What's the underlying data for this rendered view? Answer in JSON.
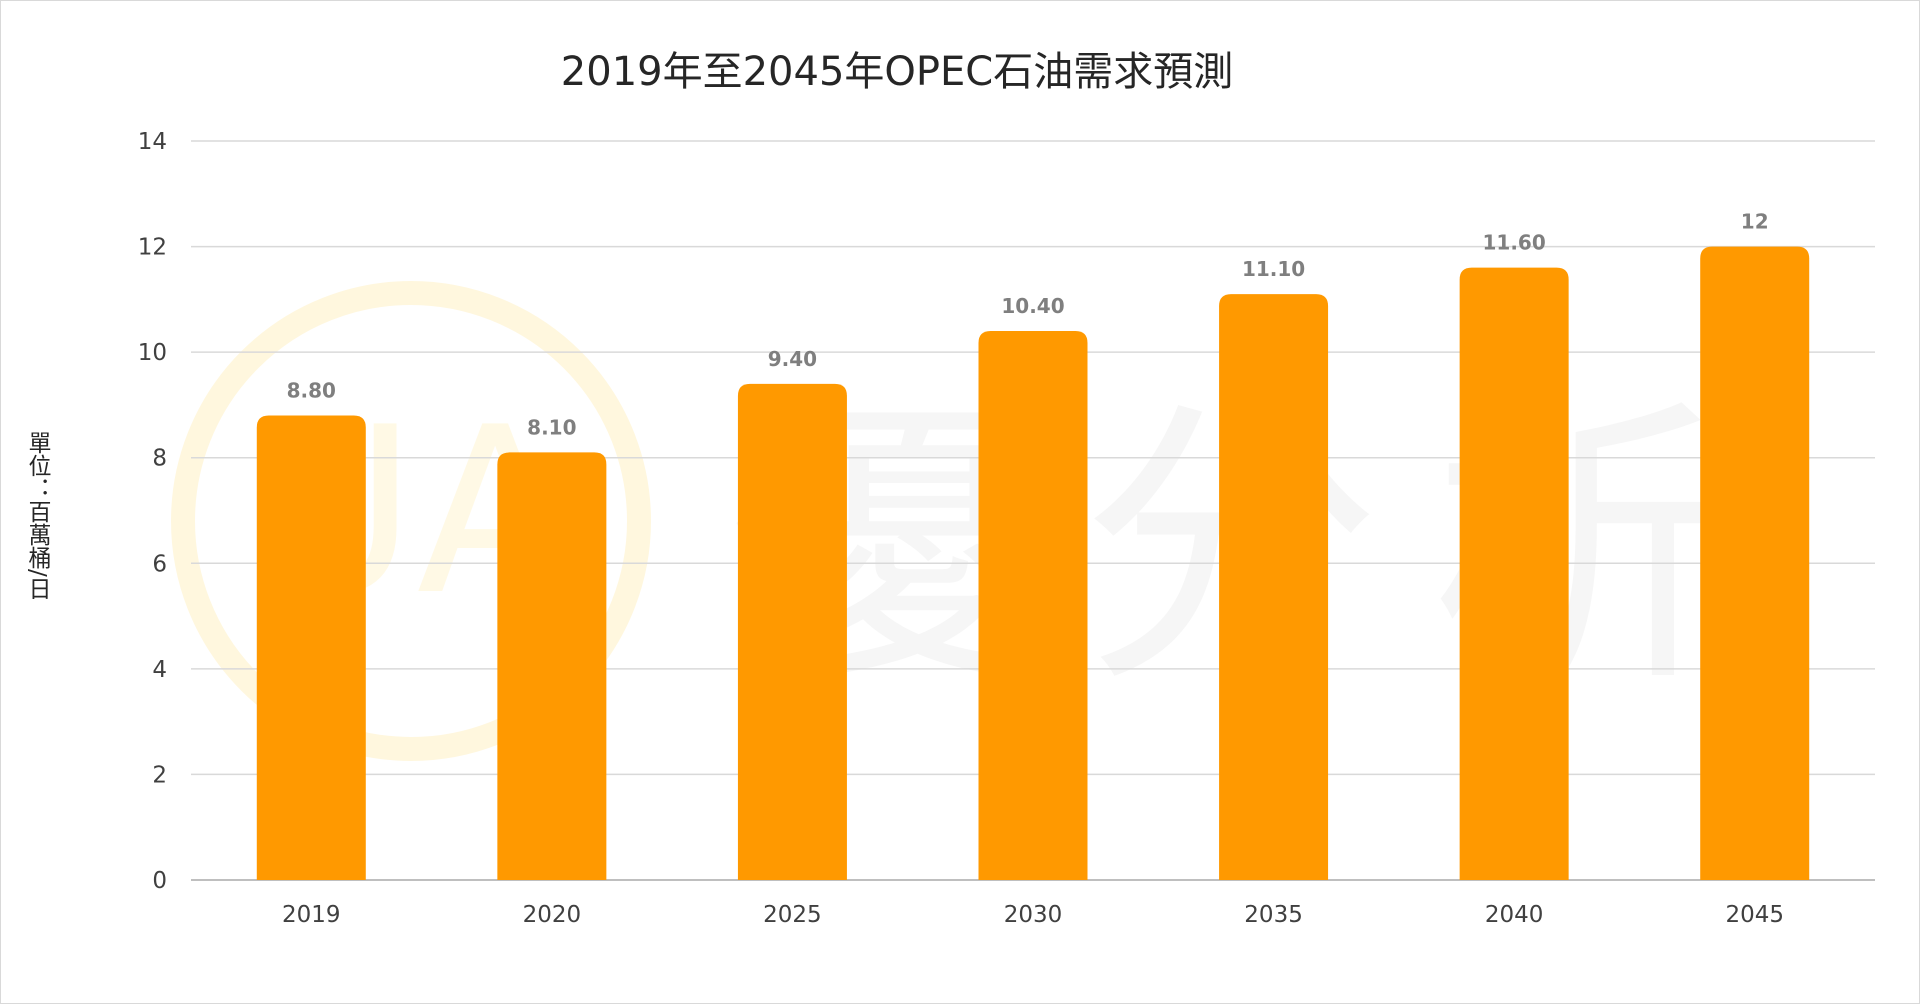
{
  "chart_data": {
    "type": "bar",
    "title": "2019年至2045年OPEC石油需求預測",
    "ylabel": "單位：百萬桶/日",
    "xlabel": "",
    "categories": [
      "2019",
      "2020",
      "2025",
      "2030",
      "2035",
      "2040",
      "2045"
    ],
    "values": [
      8.8,
      8.1,
      9.4,
      10.4,
      11.1,
      11.6,
      12
    ],
    "data_labels": [
      "8.80",
      "8.10",
      "9.40",
      "10.40",
      "11.10",
      "11.60",
      "12"
    ],
    "ylim": [
      0,
      14
    ],
    "yticks": [
      0,
      2,
      4,
      6,
      8,
      10,
      12,
      14
    ],
    "grid": true,
    "legend": "none",
    "bar_color": "#FF9900",
    "grid_color": "#d9d9d9"
  },
  "watermark": {
    "text": "優分析",
    "logo": "UA",
    "color": "#FFC000"
  }
}
